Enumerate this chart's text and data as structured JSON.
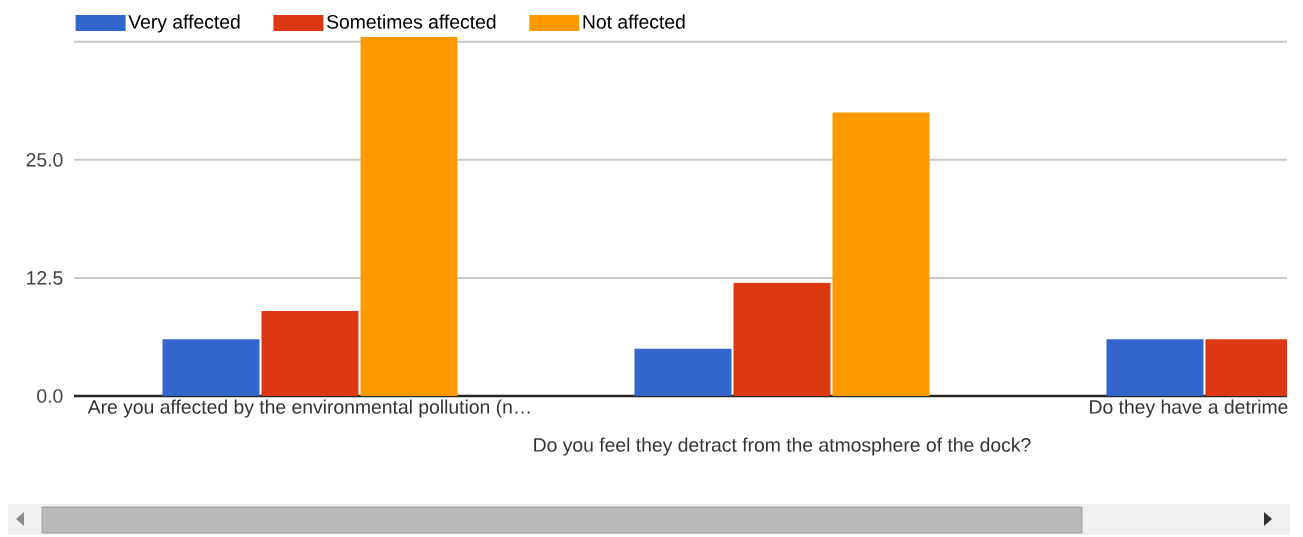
{
  "chart_data": {
    "type": "bar",
    "categories": [
      "Are you affected by the environmental pollution (n…",
      "Do you feel they detract from the atmosphere of the dock?",
      "Do they have a detrime"
    ],
    "series": [
      {
        "name": "Very affected",
        "color": "#3366cc",
        "values": [
          6,
          5,
          6
        ]
      },
      {
        "name": "Sometimes affected",
        "color": "#dc3912",
        "values": [
          9,
          12,
          6
        ]
      },
      {
        "name": "Not affected",
        "color": "#ff9900",
        "values": [
          38,
          30,
          null
        ]
      }
    ],
    "ylim": [
      0,
      38
    ],
    "yticks": [
      {
        "value": 0,
        "label": "0.0"
      },
      {
        "value": 12.5,
        "label": "12.5"
      },
      {
        "value": 25,
        "label": "25.0"
      },
      {
        "value": 37.5,
        "label": null
      }
    ],
    "grid": "y",
    "legend": "top left"
  }
}
